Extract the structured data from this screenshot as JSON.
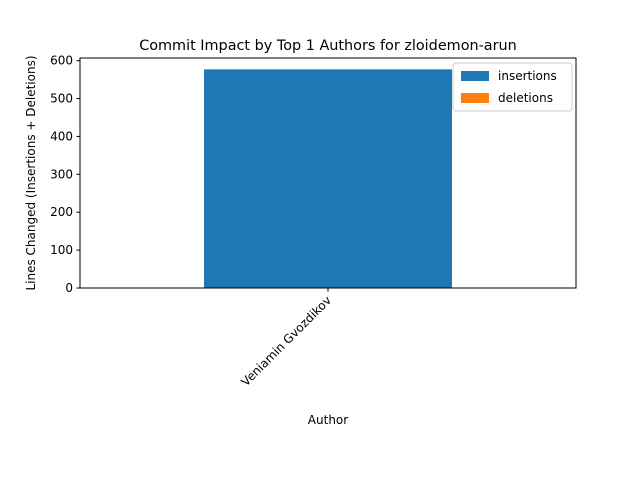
{
  "chart_data": {
    "type": "bar",
    "stacked": true,
    "title": "Commit Impact by Top 1 Authors for zloidemon-arun",
    "xlabel": "Author",
    "ylabel": "Lines Changed (Insertions + Deletions)",
    "categories": [
      "Veniamin Gvozdikov"
    ],
    "series": [
      {
        "name": "insertions",
        "values": [
          577
        ],
        "color": "#1f77b4"
      },
      {
        "name": "deletions",
        "values": [
          0
        ],
        "color": "#ff7f0e"
      }
    ],
    "yticks": [
      "0",
      "100",
      "200",
      "300",
      "400",
      "500",
      "600"
    ],
    "ylim": [
      0,
      607
    ],
    "grid": false,
    "legend_position": "top-right"
  }
}
